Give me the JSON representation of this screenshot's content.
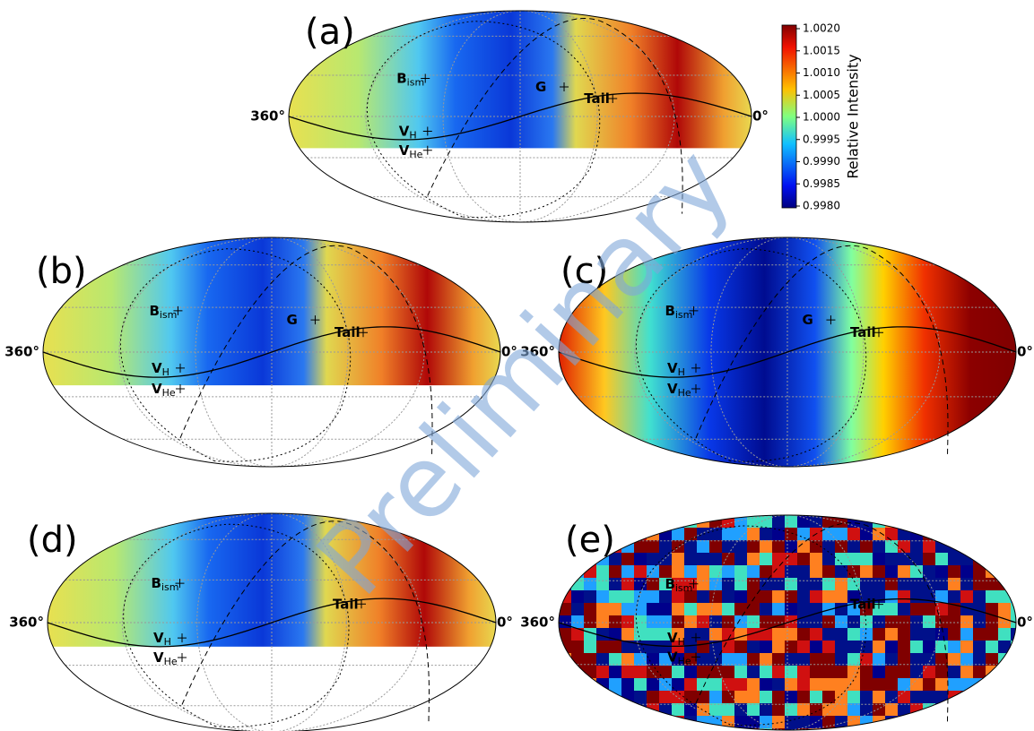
{
  "panels": [
    {
      "label": "(a)",
      "left": "360°",
      "right": "0°",
      "markers": [
        {
          "text": "B",
          "sub": "ism"
        },
        {
          "text": "G",
          "sub": null
        },
        {
          "text": "Tail",
          "sub": null
        },
        {
          "text": "V",
          "sub": "H"
        },
        {
          "text": "V",
          "sub": "He"
        }
      ]
    },
    {
      "label": "(b)",
      "left": "360°",
      "right": "0°",
      "markers": [
        {
          "text": "B",
          "sub": "ism"
        },
        {
          "text": "G",
          "sub": null
        },
        {
          "text": "Tail",
          "sub": null
        },
        {
          "text": "V",
          "sub": "H"
        },
        {
          "text": "V",
          "sub": "He"
        }
      ]
    },
    {
      "label": "(c)",
      "left": "360°",
      "right": "0°",
      "markers": [
        {
          "text": "B",
          "sub": "ism"
        },
        {
          "text": "G",
          "sub": null
        },
        {
          "text": "Tail",
          "sub": null
        },
        {
          "text": "V",
          "sub": "H"
        },
        {
          "text": "V",
          "sub": "He"
        }
      ]
    },
    {
      "label": "(d)",
      "left": "360°",
      "right": "0°",
      "markers": [
        {
          "text": "B",
          "sub": "ism"
        },
        {
          "text": "Tail",
          "sub": null
        },
        {
          "text": "V",
          "sub": "H"
        },
        {
          "text": "V",
          "sub": "He"
        }
      ]
    },
    {
      "label": "(e)",
      "left": "360°",
      "right": "0°",
      "markers": [
        {
          "text": "B",
          "sub": "ism"
        },
        {
          "text": "Tail",
          "sub": null
        },
        {
          "text": "V",
          "sub": "H"
        },
        {
          "text": "V",
          "sub": "He"
        }
      ]
    }
  ],
  "colorbar": {
    "label": "Relative Intensity",
    "ticks": [
      "1.0020",
      "1.0015",
      "1.0010",
      "1.0005",
      "1.0000",
      "0.9995",
      "0.9990",
      "0.9985",
      "0.9980"
    ]
  },
  "watermark": "Preliminary"
}
